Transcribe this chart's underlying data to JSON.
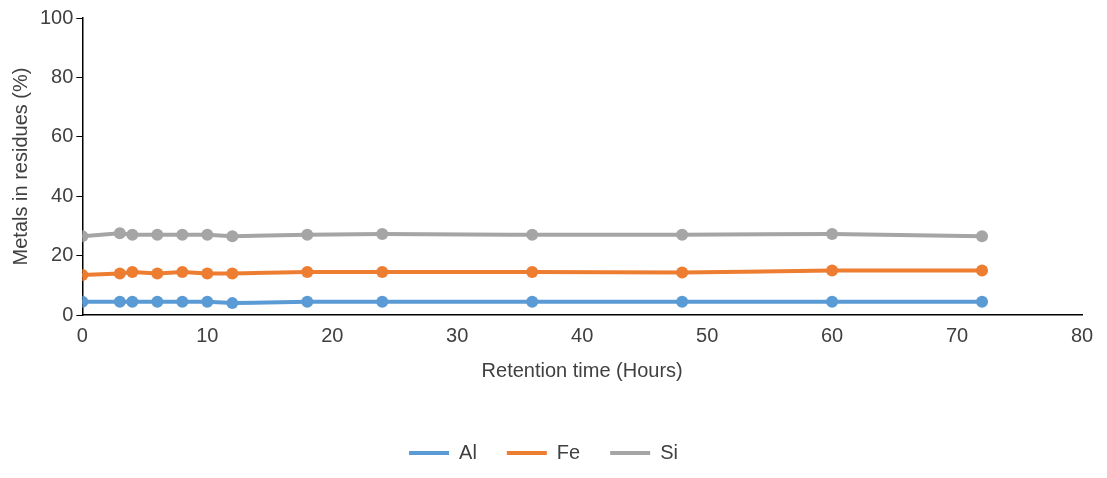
{
  "chart_data": {
    "type": "line",
    "xlabel": "Retention time (Hours)",
    "ylabel": "Metals in residues (%)",
    "x": [
      0,
      3,
      4,
      6,
      8,
      10,
      12,
      18,
      24,
      36,
      48,
      60,
      72
    ],
    "series": [
      {
        "name": "Al",
        "color": "#5b9bd5",
        "values": [
          4.5,
          4.5,
          4.5,
          4.5,
          4.5,
          4.5,
          4,
          4.5,
          4.5,
          4.5,
          4.5,
          4.5,
          4.5
        ]
      },
      {
        "name": "Fe",
        "color": "#ed7d31",
        "values": [
          13.5,
          14,
          14.5,
          14,
          14.5,
          14,
          14,
          14.5,
          14.5,
          14.5,
          14.3,
          15,
          15
        ]
      },
      {
        "name": "Si",
        "color": "#a5a5a5",
        "values": [
          26.5,
          27.5,
          27,
          27,
          27,
          27,
          26.5,
          27,
          27.3,
          27,
          27,
          27.3,
          26.5
        ]
      }
    ],
    "xlim": [
      0,
      80
    ],
    "xticks": [
      0,
      10,
      20,
      30,
      40,
      50,
      60,
      70,
      80
    ],
    "ylim": [
      0,
      100
    ],
    "yticks": [
      0,
      20,
      40,
      60,
      80,
      100
    ],
    "grid": false,
    "legend": "bottom",
    "marker": "circle",
    "line_style": "solid"
  }
}
